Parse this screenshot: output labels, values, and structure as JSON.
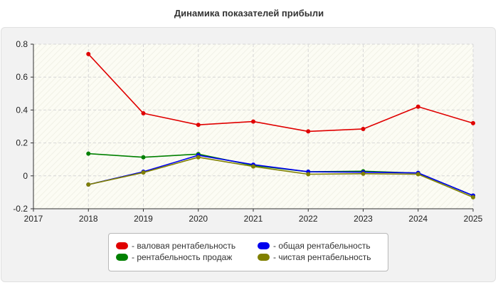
{
  "chart_data": {
    "type": "line",
    "title": "Динамика показателей прибыли",
    "x": [
      2018,
      2019,
      2020,
      2021,
      2022,
      2023,
      2024,
      2025
    ],
    "x_ticks": [
      "2017",
      "2018",
      "2019",
      "2020",
      "2021",
      "2022",
      "2023",
      "2024",
      "2025"
    ],
    "xlim": [
      2017,
      2025
    ],
    "ylim": [
      -0.2,
      0.8
    ],
    "y_ticks": [
      "-0.2",
      "0",
      "0.2",
      "0.4",
      "0.6",
      "0.8"
    ],
    "grid": true,
    "legend_position": "bottom-center",
    "series": [
      {
        "name": "- валовая рентабельность",
        "color": "#e00000",
        "values": [
          0.74,
          0.38,
          0.31,
          0.33,
          0.27,
          0.285,
          0.42,
          0.32
        ]
      },
      {
        "name": "- рентабельность продаж",
        "color": "#008000",
        "values": [
          0.135,
          0.113,
          0.132,
          0.063,
          0.025,
          0.028,
          0.017,
          -0.12
        ]
      },
      {
        "name": "- общая рентабельность",
        "color": "#0000ee",
        "values": [
          -0.053,
          0.025,
          0.125,
          0.068,
          0.025,
          0.022,
          0.018,
          -0.12
        ]
      },
      {
        "name": "- чистая рентабельность",
        "color": "#808000",
        "values": [
          -0.053,
          0.02,
          0.113,
          0.057,
          0.01,
          0.013,
          0.01,
          -0.13
        ]
      }
    ]
  }
}
